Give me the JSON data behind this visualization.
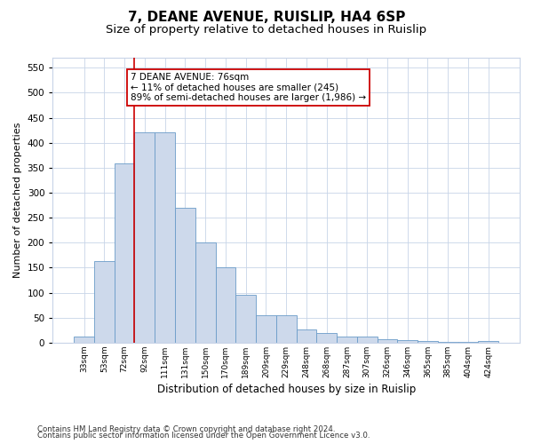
{
  "title1": "7, DEANE AVENUE, RUISLIP, HA4 6SP",
  "title2": "Size of property relative to detached houses in Ruislip",
  "xlabel": "Distribution of detached houses by size in Ruislip",
  "ylabel": "Number of detached properties",
  "categories": [
    "33sqm",
    "53sqm",
    "72sqm",
    "92sqm",
    "111sqm",
    "131sqm",
    "150sqm",
    "170sqm",
    "189sqm",
    "209sqm",
    "229sqm",
    "248sqm",
    "268sqm",
    "287sqm",
    "307sqm",
    "326sqm",
    "346sqm",
    "365sqm",
    "385sqm",
    "404sqm",
    "424sqm"
  ],
  "values": [
    13,
    163,
    358,
    420,
    420,
    270,
    200,
    150,
    95,
    55,
    55,
    27,
    20,
    13,
    13,
    7,
    5,
    4,
    2,
    1,
    3
  ],
  "bar_color": "#cdd9eb",
  "bar_edge_color": "#6a9cc8",
  "vline_x": 2.5,
  "vline_color": "#cc0000",
  "annotation_text": "7 DEANE AVENUE: 76sqm\n← 11% of detached houses are smaller (245)\n89% of semi-detached houses are larger (1,986) →",
  "annotation_box_color": "#ffffff",
  "annotation_box_edge": "#cc0000",
  "ylim": [
    0,
    570
  ],
  "yticks": [
    0,
    50,
    100,
    150,
    200,
    250,
    300,
    350,
    400,
    450,
    500,
    550
  ],
  "footer1": "Contains HM Land Registry data © Crown copyright and database right 2024.",
  "footer2": "Contains public sector information licensed under the Open Government Licence v3.0.",
  "bg_color": "#ffffff",
  "plot_bg_color": "#ffffff",
  "title1_fontsize": 11,
  "title2_fontsize": 9.5,
  "grid_color": "#c8d4e8"
}
